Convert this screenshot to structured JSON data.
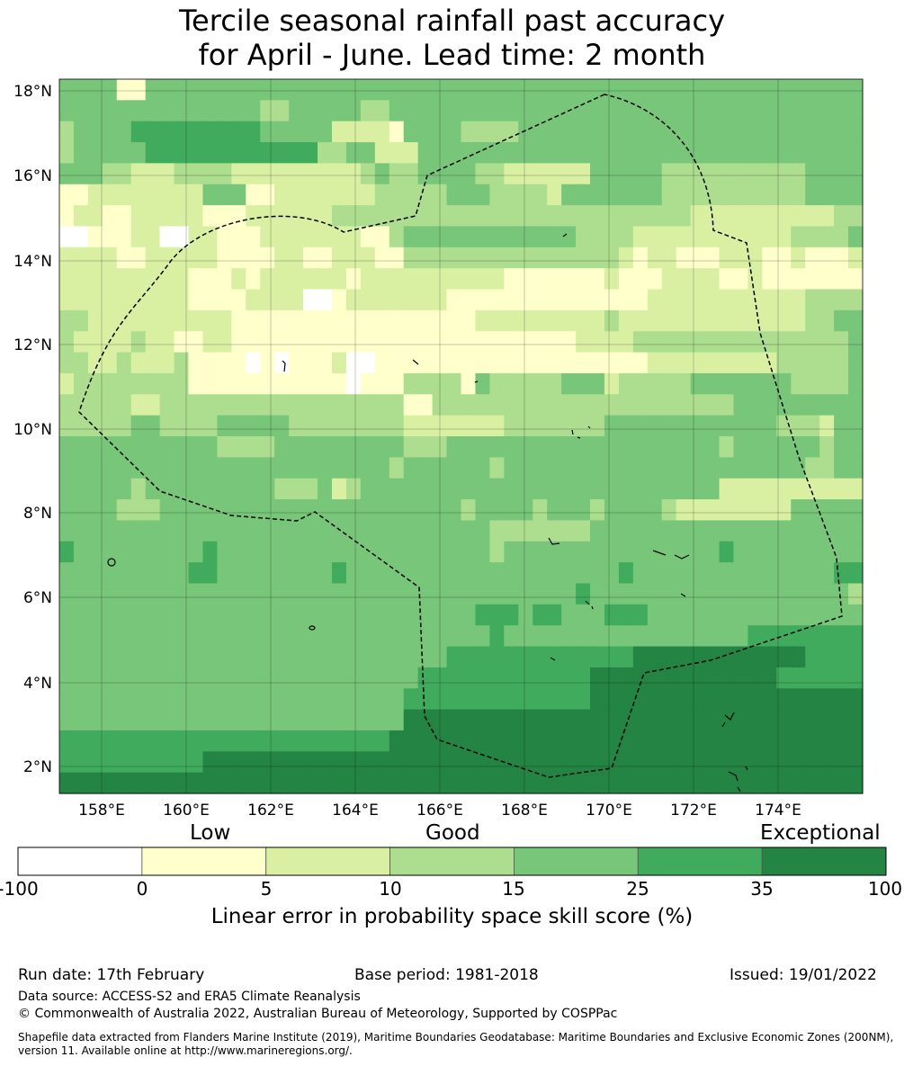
{
  "title_line1": "Tercile seasonal rainfall past accuracy",
  "title_line2": "for April - June. Lead time: 2 month",
  "map": {
    "lat_labels": [
      "18°N",
      "16°N",
      "14°N",
      "12°N",
      "10°N",
      "8°N",
      "6°N",
      "4°N",
      "2°N"
    ],
    "lon_labels": [
      "158°E",
      "160°E",
      "162°E",
      "164°E",
      "166°E",
      "168°E",
      "170°E",
      "172°E",
      "174°E"
    ],
    "palette": [
      "#ffffff",
      "#ffffcc",
      "#d9f0a3",
      "#addd8e",
      "#78c679",
      "#41ab5d",
      "#238443"
    ],
    "rows": [
      "44441144444444444444444444444444444444444444444444444444",
      "44444444444444334444433444444444444444444444444444444444",
      "34444555555555444442222144443333444444444444444444444444",
      "34444455555555555533442224444444444444444444444444444444",
      "44433222333322222222234334444332222224444433333333334444",
      "11222222224441122222223333344433332444444433333333334444",
      "12211222221112222223333333333333333333333333222222222233",
      "00111220022111222222211344444444444433332222222222233334",
      "22221122222111122112221133333333333333321221112221121112",
      "22222222211121222222122222222221111111211122221121111111",
      "22222222211112222001222222211111111111111222222222223333",
      "33222222222211111111111111111222222222322222222222223344",
      "32222322112211111111111111111111111122223333333333333334",
      "33223222311110101112001111111111111111111222222222333334",
      "23333333311111111111011133331433333444233333444444433334",
      "33333223333333333333333311333333333333333333333444444444",
      "33333443333444443333333322222223333333444444444444333244",
      "44444444444333344444444433344444444444444444443444444344",
      "44444444444444444444444344444434444444444444444444443344",
      "44444344444444433342344444444444444444444444442222222222",
      "44443334444444444444444444443444434443444432222222244444",
      "44444444444444444444444444444433333334444444444444444444",
      "54444444445444444444444444444434444444444444445444444444",
      "44444444455444444445444444444444444444454444444444444455",
      "44444444444444444444444444444444444454444444444444444443",
      "44444444444444444444444444444555455444555444444444444444",
      "44444444444444444444444444444454444444444444444455555555",
      "44444444444444444444444444455555555555556666666666665555",
      "44444444444444444444444445555555555556666666666666555555",
      "44444444444444444444444455555555555556666666666666666666",
      "44444444444444444444444466666666666666666666666666666666",
      "55555555555555555555555666666666666666666666666666666666",
      "55555555556666666666666666666666666666666666666666666666",
      "66666666666666666666666666666666666666666666666666666666"
    ]
  },
  "colorbar": {
    "categories": [
      "Low",
      "Good",
      "Exceptional"
    ],
    "ticks": [
      "-100",
      "0",
      "5",
      "10",
      "15",
      "25",
      "35",
      "100"
    ],
    "label": "Linear error in probability space skill score (%)"
  },
  "footer": {
    "run_date": "Run date: 17th February",
    "base_period": "Base period: 1981-2018",
    "issued": "Issued: 19/01/2022",
    "data_source": "Data source: ACCESS-S2 and ERA5 Climate Reanalysis",
    "copyright": "© Commonwealth of Australia 2022, Australian Bureau of Meteorology, Supported by COSPPac",
    "shapefile_line1": "Shapefile data extracted from Flanders Marine Institute (2019), Maritime Boundaries Geodatabase: Maritime Boundaries and Exclusive Economic Zones (200NM),",
    "shapefile_line2": "version 11. Available online at http://www.marineregions.org/."
  }
}
